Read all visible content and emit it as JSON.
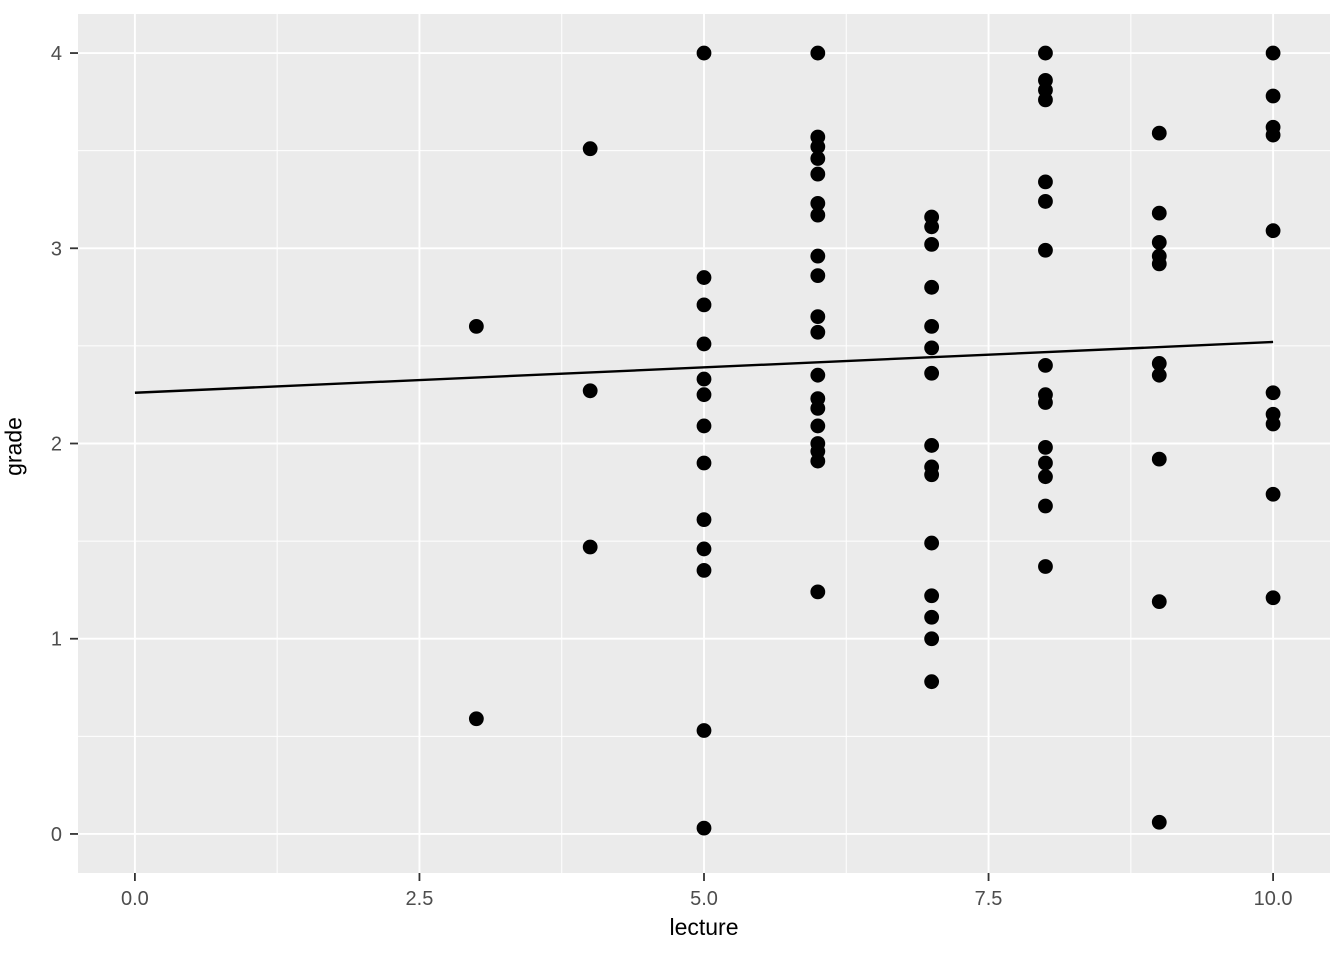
{
  "chart_data": {
    "type": "scatter",
    "title": "",
    "xlabel": "lecture",
    "ylabel": "grade",
    "xlim": [
      -0.5,
      10.5
    ],
    "ylim": [
      -0.2,
      4.2
    ],
    "grid": "major-and-minor-white-on-grey",
    "legend": "none",
    "x_ticks": {
      "major": [
        0,
        2.5,
        5,
        7.5,
        10
      ],
      "labels": [
        "0.0",
        "2.5",
        "5.0",
        "7.5",
        "10.0"
      ],
      "minor": [
        1.25,
        3.75,
        6.25,
        8.75
      ]
    },
    "y_ticks": {
      "major": [
        0,
        1,
        2,
        3,
        4
      ],
      "labels": [
        "0",
        "1",
        "2",
        "3",
        "4"
      ],
      "minor": [
        0.5,
        1.5,
        2.5,
        3.5
      ]
    },
    "points": [
      [
        3,
        2.6
      ],
      [
        3,
        0.59
      ],
      [
        4,
        3.51
      ],
      [
        4,
        2.27
      ],
      [
        4,
        1.47
      ],
      [
        5,
        4.0
      ],
      [
        5,
        2.85
      ],
      [
        5,
        2.71
      ],
      [
        5,
        2.51
      ],
      [
        5,
        2.33
      ],
      [
        5,
        2.25
      ],
      [
        5,
        2.09
      ],
      [
        5,
        1.9
      ],
      [
        5,
        1.61
      ],
      [
        5,
        1.46
      ],
      [
        5,
        1.35
      ],
      [
        5,
        0.53
      ],
      [
        5,
        0.03
      ],
      [
        6,
        4.0
      ],
      [
        6,
        3.57
      ],
      [
        6,
        3.52
      ],
      [
        6,
        3.46
      ],
      [
        6,
        3.38
      ],
      [
        6,
        3.23
      ],
      [
        6,
        3.17
      ],
      [
        6,
        2.96
      ],
      [
        6,
        2.86
      ],
      [
        6,
        2.65
      ],
      [
        6,
        2.57
      ],
      [
        6,
        2.35
      ],
      [
        6,
        2.23
      ],
      [
        6,
        2.18
      ],
      [
        6,
        2.09
      ],
      [
        6,
        2.0
      ],
      [
        6,
        1.96
      ],
      [
        6,
        1.91
      ],
      [
        6,
        1.24
      ],
      [
        7,
        3.16
      ],
      [
        7,
        3.11
      ],
      [
        7,
        3.02
      ],
      [
        7,
        2.8
      ],
      [
        7,
        2.6
      ],
      [
        7,
        2.49
      ],
      [
        7,
        2.36
      ],
      [
        7,
        1.99
      ],
      [
        7,
        1.88
      ],
      [
        7,
        1.84
      ],
      [
        7,
        1.49
      ],
      [
        7,
        1.22
      ],
      [
        7,
        1.11
      ],
      [
        7,
        1.0
      ],
      [
        7,
        0.78
      ],
      [
        8,
        4.0
      ],
      [
        8,
        3.86
      ],
      [
        8,
        3.81
      ],
      [
        8,
        3.76
      ],
      [
        8,
        3.34
      ],
      [
        8,
        3.24
      ],
      [
        8,
        2.99
      ],
      [
        8,
        2.4
      ],
      [
        8,
        2.25
      ],
      [
        8,
        2.21
      ],
      [
        8,
        1.98
      ],
      [
        8,
        1.9
      ],
      [
        8,
        1.83
      ],
      [
        8,
        1.68
      ],
      [
        8,
        1.37
      ],
      [
        9,
        3.59
      ],
      [
        9,
        3.18
      ],
      [
        9,
        3.03
      ],
      [
        9,
        2.96
      ],
      [
        9,
        2.92
      ],
      [
        9,
        2.41
      ],
      [
        9,
        2.35
      ],
      [
        9,
        1.92
      ],
      [
        9,
        1.19
      ],
      [
        9,
        0.06
      ],
      [
        10,
        4.0
      ],
      [
        10,
        3.78
      ],
      [
        10,
        3.62
      ],
      [
        10,
        3.58
      ],
      [
        10,
        3.09
      ],
      [
        10,
        2.26
      ],
      [
        10,
        2.15
      ],
      [
        10,
        2.1
      ],
      [
        10,
        1.74
      ],
      [
        10,
        1.21
      ]
    ],
    "regression_line": {
      "x": [
        0,
        10
      ],
      "y": [
        2.26,
        2.52
      ]
    },
    "style": {
      "panel_bg": "#EBEBEB",
      "outer_bg": "#FFFFFF",
      "grid_color": "#FFFFFF",
      "point_color": "#000000",
      "line_color": "#000000",
      "tick_mark_color": "#333333",
      "tick_label_color": "#4D4D4D",
      "axis_title_color": "#000000"
    }
  }
}
